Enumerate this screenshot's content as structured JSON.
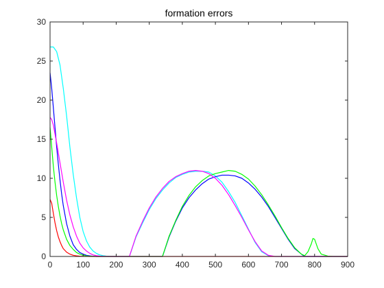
{
  "chart_data": {
    "type": "line",
    "title": "formation errors",
    "xlabel": "",
    "ylabel": "",
    "xlim": [
      0,
      900
    ],
    "ylim": [
      0,
      30
    ],
    "x_ticks": [
      "0",
      "100",
      "200",
      "300",
      "400",
      "500",
      "600",
      "700",
      "800",
      "900"
    ],
    "y_ticks": [
      "0",
      "5",
      "10",
      "15",
      "20",
      "25",
      "30"
    ],
    "grid": false,
    "legend": "none",
    "series": [
      {
        "color": "#00ffff",
        "x": [
          0,
          10,
          20,
          30,
          40,
          50,
          60,
          70,
          80,
          90,
          100,
          110,
          120,
          130,
          140,
          150,
          160,
          170,
          180,
          200,
          240,
          260,
          280,
          300,
          320,
          340,
          360,
          380,
          400,
          420,
          440,
          460,
          480,
          500,
          520,
          540,
          560,
          580,
          600,
          620,
          640,
          660,
          680,
          700,
          900
        ],
        "y": [
          26.8,
          26.8,
          26.2,
          24.5,
          21.5,
          18.0,
          14.0,
          10.5,
          7.5,
          5.0,
          3.2,
          2.0,
          1.2,
          0.7,
          0.4,
          0.2,
          0.1,
          0.05,
          0.02,
          0,
          0,
          2.5,
          4.3,
          6.0,
          7.4,
          8.5,
          9.4,
          10.1,
          10.5,
          10.8,
          10.9,
          10.9,
          10.8,
          10.3,
          9.5,
          8.3,
          6.9,
          5.2,
          3.5,
          1.8,
          0.6,
          0.1,
          0,
          0,
          0
        ]
      },
      {
        "color": "#0000ff",
        "x": [
          0,
          5,
          10,
          15,
          20,
          25,
          30,
          35,
          40,
          50,
          60,
          70,
          80,
          90,
          100,
          110,
          120,
          130,
          140,
          340,
          360,
          380,
          400,
          420,
          440,
          460,
          480,
          500,
          520,
          540,
          560,
          580,
          600,
          620,
          640,
          660,
          680,
          700,
          720,
          740,
          760,
          770,
          900
        ],
        "y": [
          23.5,
          21.5,
          19.0,
          16.5,
          14.0,
          11.8,
          9.8,
          8.0,
          6.5,
          4.2,
          2.6,
          1.5,
          0.9,
          0.5,
          0.3,
          0.15,
          0.08,
          0.03,
          0,
          0,
          2.5,
          4.5,
          6.2,
          7.5,
          8.5,
          9.3,
          9.9,
          10.2,
          10.4,
          10.4,
          10.3,
          10.0,
          9.4,
          8.6,
          7.6,
          6.4,
          5.0,
          3.6,
          2.2,
          1.0,
          0.3,
          0,
          0
        ]
      },
      {
        "color": "#00ff00",
        "x": [
          0,
          5,
          10,
          15,
          20,
          25,
          30,
          35,
          40,
          50,
          60,
          70,
          80,
          90,
          100,
          110,
          120,
          140,
          340,
          360,
          380,
          400,
          420,
          440,
          460,
          480,
          500,
          520,
          540,
          560,
          580,
          600,
          620,
          640,
          660,
          680,
          700,
          720,
          740,
          760,
          770,
          780,
          790,
          795,
          800,
          810,
          820,
          840,
          860,
          880,
          900
        ],
        "y": [
          16.5,
          14.0,
          11.5,
          9.5,
          7.8,
          6.4,
          5.2,
          4.2,
          3.4,
          2.2,
          1.4,
          0.9,
          0.5,
          0.3,
          0.15,
          0.08,
          0.03,
          0,
          0,
          2.6,
          4.6,
          6.4,
          7.8,
          8.9,
          9.7,
          10.3,
          10.6,
          10.8,
          11.0,
          10.9,
          10.5,
          9.9,
          9.0,
          7.9,
          6.6,
          5.2,
          3.7,
          2.3,
          1.1,
          0.3,
          0.1,
          0.6,
          1.6,
          2.3,
          2.2,
          1.0,
          0.3,
          0.05,
          0,
          0,
          0
        ]
      },
      {
        "color": "#ff00ff",
        "x": [
          0,
          5,
          10,
          20,
          30,
          40,
          50,
          60,
          70,
          80,
          90,
          100,
          110,
          120,
          130,
          140,
          150,
          160,
          170,
          180,
          240,
          260,
          280,
          300,
          320,
          340,
          360,
          380,
          400,
          420,
          440,
          460,
          480,
          500,
          520,
          540,
          560,
          580,
          600,
          620,
          640,
          660,
          680,
          700,
          900
        ],
        "y": [
          17.8,
          17.5,
          16.8,
          14.5,
          12.0,
          9.5,
          7.2,
          5.3,
          3.8,
          2.6,
          1.7,
          1.1,
          0.7,
          0.4,
          0.2,
          0.1,
          0.05,
          0.02,
          0.01,
          0,
          0,
          2.6,
          4.5,
          6.2,
          7.6,
          8.7,
          9.6,
          10.2,
          10.6,
          10.9,
          11.0,
          10.9,
          10.6,
          10.0,
          9.1,
          7.9,
          6.5,
          5.0,
          3.4,
          1.9,
          0.7,
          0.15,
          0,
          0,
          0
        ]
      },
      {
        "color": "#ff0000",
        "x": [
          0,
          5,
          10,
          15,
          20,
          25,
          30,
          35,
          40,
          50,
          60,
          70,
          80,
          90,
          100,
          120,
          900
        ],
        "y": [
          7.3,
          6.8,
          5.5,
          4.3,
          3.3,
          2.5,
          1.9,
          1.4,
          1.0,
          0.55,
          0.3,
          0.15,
          0.08,
          0.04,
          0.02,
          0,
          0
        ]
      }
    ]
  }
}
